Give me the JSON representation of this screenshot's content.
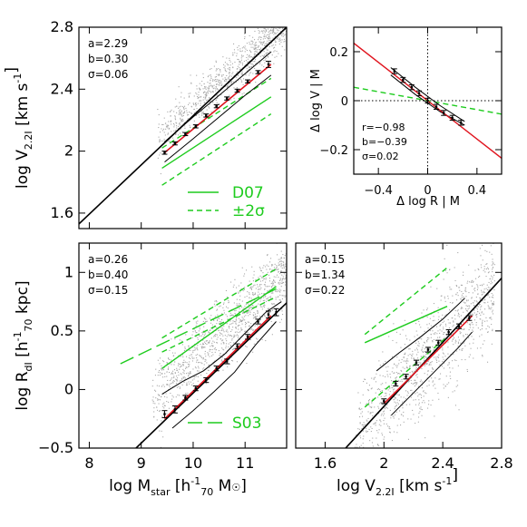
{
  "chart_data": [
    {
      "id": "A",
      "type": "scatter",
      "xlabel": "",
      "ylabel": {
        "main": "log  V",
        "sub": "2.2I",
        "rest": "  [km s",
        "sup": "-1",
        "tail": "]"
      },
      "xlim": [
        7.8,
        11.8
      ],
      "ylim": [
        1.5,
        2.8
      ],
      "xticks": [
        8,
        9,
        10,
        11
      ],
      "xtick_labels": [
        "",
        "",
        "",
        ""
      ],
      "yticks": [
        1.6,
        2.0,
        2.4,
        2.8
      ],
      "ytick_labels": [
        "1.6",
        "2",
        "2.4",
        "2.8"
      ],
      "annotations": [
        "a=2.29",
        "b=0.30",
        "σ=0.06"
      ],
      "fit_line": {
        "x": [
          7.8,
          11.8
        ],
        "y": [
          1.53,
          2.8
        ]
      },
      "fit_red": {
        "x": [
          9.45,
          11.5
        ],
        "y": [
          1.99,
          2.56
        ]
      },
      "binned_points": {
        "x": [
          9.45,
          9.65,
          9.85,
          10.05,
          10.25,
          10.45,
          10.65,
          10.85,
          11.05,
          11.25,
          11.45
        ],
        "y": [
          1.99,
          2.05,
          2.11,
          2.16,
          2.23,
          2.29,
          2.34,
          2.39,
          2.45,
          2.51,
          2.56
        ],
        "err": [
          0.01,
          0.01,
          0.01,
          0.01,
          0.01,
          0.01,
          0.01,
          0.01,
          0.01,
          0.01,
          0.02
        ]
      },
      "envelope_upper": {
        "x": [
          9.45,
          10,
          10.5,
          11,
          11.5
        ],
        "y": [
          2.06,
          2.22,
          2.36,
          2.5,
          2.64
        ]
      },
      "envelope_lower": {
        "x": [
          9.45,
          10,
          10.5,
          11,
          11.5
        ],
        "y": [
          1.93,
          2.08,
          2.22,
          2.36,
          2.49
        ]
      },
      "D07_solid": {
        "x": [
          9.4,
          11.5
        ],
        "y": [
          1.89,
          2.35
        ]
      },
      "D07_dash_upper": {
        "x": [
          9.4,
          11.5
        ],
        "y": [
          2.02,
          2.47
        ]
      },
      "D07_dash_lower": {
        "x": [
          9.4,
          11.5
        ],
        "y": [
          1.78,
          2.24
        ]
      },
      "legend": [
        {
          "label": "D07",
          "style": "solid"
        },
        {
          "label": "±2σ",
          "style": "dashed"
        }
      ],
      "legend_position": "bottom-right",
      "scatter_extent": {
        "x": [
          9.3,
          11.8
        ],
        "y_center_line": "fit",
        "scatter": 0.07
      }
    },
    {
      "id": "B",
      "type": "scatter",
      "xlabel": "Δ  log  R | M",
      "ylabel": "Δ  log  V | M",
      "xlim": [
        -0.6,
        0.6
      ],
      "ylim": [
        -0.3,
        0.3
      ],
      "xticks": [
        -0.4,
        0,
        0.4
      ],
      "xtick_labels": [
        "−0.4",
        "0",
        "0.4"
      ],
      "yticks": [
        -0.2,
        0,
        0.2
      ],
      "ytick_labels": [
        "−0.2",
        "0",
        "0.2"
      ],
      "annotations": [
        "r=−0.98",
        "b=−0.39",
        "σ=0.02"
      ],
      "red_line": {
        "x": [
          -0.6,
          0.6
        ],
        "y": [
          0.235,
          -0.235
        ]
      },
      "green_dashed": {
        "x": [
          -0.6,
          0.6
        ],
        "y": [
          0.055,
          -0.055
        ]
      },
      "binned_points": {
        "x": [
          -0.27,
          -0.2,
          -0.13,
          -0.07,
          0,
          0.07,
          0.13,
          0.2,
          0.27
        ],
        "y": [
          0.12,
          0.085,
          0.055,
          0.03,
          0.0,
          -0.025,
          -0.05,
          -0.07,
          -0.09
        ]
      },
      "envelope_upper": {
        "x": [
          -0.3,
          -0.1,
          0.1,
          0.3
        ],
        "y": [
          0.135,
          0.055,
          -0.02,
          -0.085
        ]
      },
      "envelope_lower": {
        "x": [
          -0.3,
          -0.1,
          0.1,
          0.3
        ],
        "y": [
          0.105,
          0.025,
          -0.045,
          -0.1
        ]
      }
    },
    {
      "id": "C",
      "type": "scatter",
      "xlabel": {
        "main": "log  M",
        "sub": "star",
        "rest": "  [h",
        "sup": "-1",
        "sub2": "70",
        "tail": " M",
        "sym": "☉",
        "end": "]"
      },
      "ylabel": {
        "main": "log  R",
        "sub": "dI",
        "rest": "  [h",
        "sup": "-1",
        "sub2": "70",
        "tail": " kpc]"
      },
      "xlim": [
        7.8,
        11.8
      ],
      "ylim": [
        -0.5,
        1.25
      ],
      "xticks": [
        8,
        9,
        10,
        11
      ],
      "xtick_labels": [
        "8",
        "9",
        "10",
        "11"
      ],
      "yticks": [
        -0.5,
        0,
        0.5,
        1.0
      ],
      "ytick_labels": [
        "−0.5",
        "0",
        "0.5",
        "1"
      ],
      "annotations": [
        "a=0.26",
        "b=0.40",
        "σ=0.15"
      ],
      "fit_line": {
        "x": [
          8.9,
          11.8
        ],
        "y": [
          -0.5,
          0.74
        ]
      },
      "fit_red": {
        "x": [
          9.45,
          11.5
        ],
        "y": [
          -0.25,
          0.63
        ]
      },
      "binned_points": {
        "x": [
          9.45,
          9.65,
          9.85,
          10.05,
          10.25,
          10.45,
          10.65,
          10.85,
          11.05,
          11.25,
          11.45,
          11.6
        ],
        "y": [
          -0.21,
          -0.17,
          -0.07,
          0.01,
          0.08,
          0.18,
          0.24,
          0.37,
          0.45,
          0.58,
          0.64,
          0.66
        ],
        "err": [
          0.03,
          0.03,
          0.02,
          0.02,
          0.02,
          0.02,
          0.02,
          0.02,
          0.02,
          0.02,
          0.03,
          0.03
        ]
      },
      "envelope_upper": {
        "x": [
          9.4,
          9.8,
          10.2,
          10.6,
          11.0,
          11.4,
          11.7
        ],
        "y": [
          -0.04,
          0.07,
          0.16,
          0.3,
          0.48,
          0.66,
          0.75
        ]
      },
      "envelope_lower": {
        "x": [
          9.6,
          10.0,
          10.4,
          10.8,
          11.2,
          11.6
        ],
        "y": [
          -0.33,
          -0.18,
          -0.02,
          0.15,
          0.38,
          0.58
        ]
      },
      "S03_solid": {
        "x": [
          9.4,
          11.6
        ],
        "y": [
          0.18,
          0.88
        ]
      },
      "S03_dash_upper": {
        "x": [
          9.4,
          11.6
        ],
        "y": [
          0.44,
          1.03
        ]
      },
      "S03_dash_lower": {
        "x": [
          9.4,
          11.6
        ],
        "y": [
          0.32,
          0.79
        ]
      },
      "S03_longdash": {
        "x": [
          8.6,
          11.6
        ],
        "y": [
          0.22,
          0.86
        ]
      },
      "legend": [
        {
          "label": "S03",
          "style": "long-dashed"
        }
      ],
      "legend_position": "bottom-right"
    },
    {
      "id": "D",
      "type": "scatter",
      "xlabel": {
        "main": "log  V",
        "sub": "2.2I",
        "rest": "  [km s",
        "sup": "-1",
        "tail": "]"
      },
      "ylabel": "",
      "xlim": [
        1.4,
        2.8
      ],
      "ylim": [
        -0.5,
        1.25
      ],
      "xticks": [
        1.6,
        2.0,
        2.4,
        2.8
      ],
      "xtick_labels": [
        "1.6",
        "2",
        "2.4",
        "2.8"
      ],
      "yticks": [
        -0.5,
        0,
        0.5,
        1.0
      ],
      "ytick_labels": [
        "",
        "",
        "",
        ""
      ],
      "annotations": [
        "a=0.15",
        "b=1.34",
        "σ=0.22"
      ],
      "fit_line": {
        "x": [
          1.74,
          2.8
        ],
        "y": [
          -0.5,
          0.95
        ]
      },
      "fit_red": {
        "x": [
          2.0,
          2.6
        ],
        "y": [
          -0.12,
          0.63
        ]
      },
      "binned_points": {
        "x": [
          2.0,
          2.08,
          2.15,
          2.22,
          2.3,
          2.37,
          2.44,
          2.51,
          2.58
        ],
        "y": [
          -0.1,
          0.05,
          0.11,
          0.23,
          0.34,
          0.4,
          0.49,
          0.54,
          0.61
        ],
        "err": [
          0.02,
          0.02,
          0.02,
          0.02,
          0.02,
          0.02,
          0.02,
          0.02,
          0.02
        ]
      },
      "envelope_upper": {
        "x": [
          1.95,
          2.1,
          2.25,
          2.4,
          2.55
        ],
        "y": [
          0.16,
          0.31,
          0.45,
          0.6,
          0.78
        ]
      },
      "envelope_lower": {
        "x": [
          2.05,
          2.2,
          2.35,
          2.5,
          2.6
        ],
        "y": [
          -0.22,
          -0.03,
          0.16,
          0.35,
          0.49
        ]
      },
      "green_solid": {
        "x": [
          1.87,
          2.43
        ],
        "y": [
          0.4,
          0.71
        ]
      },
      "green_dash_upper": {
        "x": [
          1.87,
          2.43
        ],
        "y": [
          0.47,
          1.04
        ]
      },
      "green_dash_lower": {
        "x": [
          1.87,
          2.43
        ],
        "y": [
          -0.15,
          0.45
        ]
      }
    }
  ],
  "colors": {
    "fit": "#000000",
    "red_fit": "#e0141e",
    "green": "#1ecc1e",
    "scatter": "#a8a8a8"
  }
}
